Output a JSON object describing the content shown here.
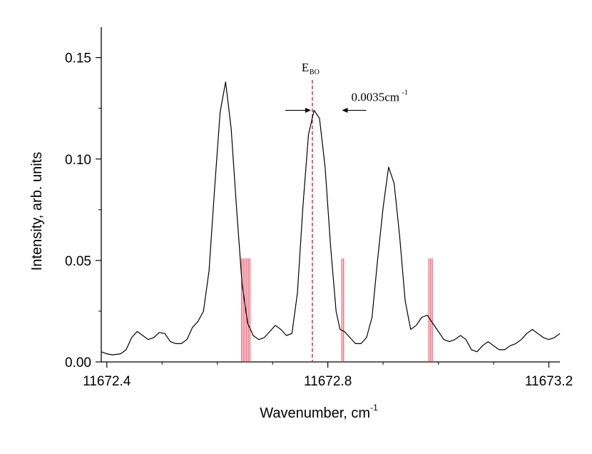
{
  "chart_data": {
    "type": "line",
    "xlabel": "Wavenumber, cm",
    "xlabel_sup": "-1",
    "ylabel": "Intensity, arb. units",
    "xlim": [
      11672.39,
      11673.22
    ],
    "ylim": [
      0.0,
      0.165
    ],
    "x_ticks": [
      11672.4,
      11672.8,
      11673.2
    ],
    "x_tick_labels": [
      "11672.4",
      "11672.8",
      "11673.2"
    ],
    "x_minor_step": 0.1,
    "y_ticks": [
      0.0,
      0.05,
      0.1,
      0.15
    ],
    "y_tick_labels": [
      "0.00",
      "0.05",
      "0.10",
      "0.15"
    ],
    "y_minor_step": 0.025,
    "grid": false,
    "colors": {
      "spectrum": "#000000",
      "stick": "#e8334a",
      "marker": "#e03030"
    },
    "series": [
      {
        "x": [
          11672.39,
          11672.4,
          11672.41,
          11672.425,
          11672.435,
          11672.445,
          11672.455,
          11672.465,
          11672.475,
          11672.485,
          11672.495,
          11672.505,
          11672.515,
          11672.525,
          11672.535,
          11672.545,
          11672.555,
          11672.565,
          11672.575,
          11672.585,
          11672.595,
          11672.605,
          11672.615,
          11672.625,
          11672.635,
          11672.645,
          11672.655,
          11672.665,
          11672.675,
          11672.685,
          11672.695,
          11672.705,
          11672.715,
          11672.725,
          11672.735,
          11672.745,
          11672.755,
          11672.765,
          11672.775,
          11672.785,
          11672.795,
          11672.805,
          11672.815,
          11672.822,
          11672.83,
          11672.84,
          11672.85,
          11672.86,
          11672.87,
          11672.88,
          11672.89,
          11672.9,
          11672.91,
          11672.92,
          11672.93,
          11672.94,
          11672.95,
          11672.96,
          11672.97,
          11672.98,
          11672.99,
          11673.0,
          11673.01,
          11673.02,
          11673.03,
          11673.04,
          11673.05,
          11673.06,
          11673.07,
          11673.08,
          11673.09,
          11673.1,
          11673.11,
          11673.12,
          11673.13,
          11673.14,
          11673.15,
          11673.16,
          11673.17,
          11673.18,
          11673.19,
          11673.2,
          11673.21,
          11673.22
        ],
        "y": [
          0.005,
          0.004,
          0.0035,
          0.004,
          0.006,
          0.012,
          0.015,
          0.013,
          0.011,
          0.012,
          0.0145,
          0.014,
          0.01,
          0.009,
          0.009,
          0.011,
          0.017,
          0.02,
          0.025,
          0.045,
          0.085,
          0.123,
          0.138,
          0.115,
          0.075,
          0.038,
          0.019,
          0.013,
          0.011,
          0.012,
          0.015,
          0.018,
          0.016,
          0.013,
          0.014,
          0.034,
          0.077,
          0.112,
          0.124,
          0.12,
          0.096,
          0.057,
          0.025,
          0.016,
          0.015,
          0.012,
          0.009,
          0.009,
          0.012,
          0.022,
          0.05,
          0.076,
          0.096,
          0.088,
          0.062,
          0.03,
          0.016,
          0.018,
          0.022,
          0.023,
          0.019,
          0.015,
          0.011,
          0.01,
          0.011,
          0.013,
          0.011,
          0.006,
          0.005,
          0.008,
          0.01,
          0.008,
          0.006,
          0.006,
          0.008,
          0.009,
          0.011,
          0.014,
          0.016,
          0.014,
          0.012,
          0.011,
          0.012,
          0.014
        ]
      }
    ],
    "sticks": [
      {
        "x": [
          11672.644,
          11672.647,
          11672.65,
          11672.653,
          11672.656,
          11672.659
        ],
        "height": 0.051
      },
      {
        "x": [
          11672.8255,
          11672.8285
        ],
        "height": 0.051
      },
      {
        "x": [
          11672.983,
          11672.986,
          11672.989
        ],
        "height": 0.051
      }
    ],
    "marker_line": {
      "x": 11672.772,
      "label": "E",
      "label_sub": "BO"
    },
    "annotation": {
      "text": "0.0035cm",
      "sup": "-1",
      "arrow_left_x": 11672.772,
      "arrow_right_x": 11672.823,
      "y": 0.124
    }
  }
}
